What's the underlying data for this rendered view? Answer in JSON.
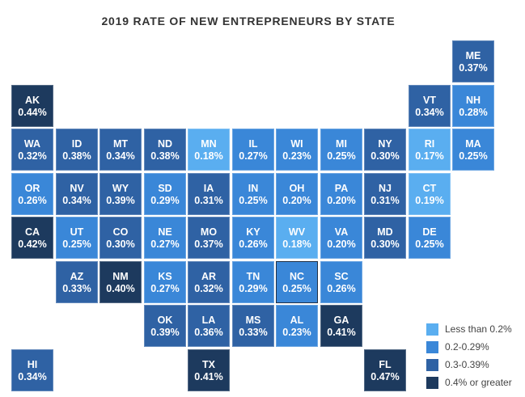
{
  "title": "2019 RATE OF NEW ENTREPRENEURS BY STATE",
  "colors": {
    "low": "#5aaef0",
    "mid_low": "#3a87d8",
    "mid_high": "#2f62a4",
    "high": "#1d3a5e"
  },
  "legend": [
    {
      "label": "Less than 0.2%",
      "color_key": "low"
    },
    {
      "label": "0.2-0.29%",
      "color_key": "mid_low"
    },
    {
      "label": "0.3-0.39%",
      "color_key": "mid_high"
    },
    {
      "label": "0.4% or greater",
      "color_key": "high"
    }
  ],
  "states": [
    {
      "abbr": "ME",
      "value": "0.37%",
      "rate": 0.37,
      "col": 10,
      "row": 0
    },
    {
      "abbr": "AK",
      "value": "0.44%",
      "rate": 0.44,
      "col": 0,
      "row": 1
    },
    {
      "abbr": "VT",
      "value": "0.34%",
      "rate": 0.34,
      "col": 9,
      "row": 1
    },
    {
      "abbr": "NH",
      "value": "0.28%",
      "rate": 0.28,
      "col": 10,
      "row": 1
    },
    {
      "abbr": "WA",
      "value": "0.32%",
      "rate": 0.32,
      "col": 0,
      "row": 2
    },
    {
      "abbr": "ID",
      "value": "0.38%",
      "rate": 0.38,
      "col": 1,
      "row": 2
    },
    {
      "abbr": "MT",
      "value": "0.34%",
      "rate": 0.34,
      "col": 2,
      "row": 2
    },
    {
      "abbr": "ND",
      "value": "0.38%",
      "rate": 0.38,
      "col": 3,
      "row": 2
    },
    {
      "abbr": "MN",
      "value": "0.18%",
      "rate": 0.18,
      "col": 4,
      "row": 2
    },
    {
      "abbr": "IL",
      "value": "0.27%",
      "rate": 0.27,
      "col": 5,
      "row": 2
    },
    {
      "abbr": "WI",
      "value": "0.23%",
      "rate": 0.23,
      "col": 6,
      "row": 2
    },
    {
      "abbr": "MI",
      "value": "0.25%",
      "rate": 0.25,
      "col": 7,
      "row": 2
    },
    {
      "abbr": "NY",
      "value": "0.30%",
      "rate": 0.3,
      "col": 8,
      "row": 2
    },
    {
      "abbr": "RI",
      "value": "0.17%",
      "rate": 0.17,
      "col": 9,
      "row": 2
    },
    {
      "abbr": "MA",
      "value": "0.25%",
      "rate": 0.25,
      "col": 10,
      "row": 2
    },
    {
      "abbr": "OR",
      "value": "0.26%",
      "rate": 0.26,
      "col": 0,
      "row": 3
    },
    {
      "abbr": "NV",
      "value": "0.34%",
      "rate": 0.34,
      "col": 1,
      "row": 3
    },
    {
      "abbr": "WY",
      "value": "0.39%",
      "rate": 0.39,
      "col": 2,
      "row": 3
    },
    {
      "abbr": "SD",
      "value": "0.29%",
      "rate": 0.29,
      "col": 3,
      "row": 3
    },
    {
      "abbr": "IA",
      "value": "0.31%",
      "rate": 0.31,
      "col": 4,
      "row": 3
    },
    {
      "abbr": "IN",
      "value": "0.25%",
      "rate": 0.25,
      "col": 5,
      "row": 3
    },
    {
      "abbr": "OH",
      "value": "0.20%",
      "rate": 0.2,
      "col": 6,
      "row": 3
    },
    {
      "abbr": "PA",
      "value": "0.20%",
      "rate": 0.2,
      "col": 7,
      "row": 3
    },
    {
      "abbr": "NJ",
      "value": "0.31%",
      "rate": 0.31,
      "col": 8,
      "row": 3
    },
    {
      "abbr": "CT",
      "value": "0.19%",
      "rate": 0.19,
      "col": 9,
      "row": 3
    },
    {
      "abbr": "CA",
      "value": "0.42%",
      "rate": 0.42,
      "col": 0,
      "row": 4
    },
    {
      "abbr": "UT",
      "value": "0.25%",
      "rate": 0.25,
      "col": 1,
      "row": 4
    },
    {
      "abbr": "CO",
      "value": "0.30%",
      "rate": 0.3,
      "col": 2,
      "row": 4
    },
    {
      "abbr": "NE",
      "value": "0.27%",
      "rate": 0.27,
      "col": 3,
      "row": 4
    },
    {
      "abbr": "MO",
      "value": "0.37%",
      "rate": 0.37,
      "col": 4,
      "row": 4
    },
    {
      "abbr": "KY",
      "value": "0.26%",
      "rate": 0.26,
      "col": 5,
      "row": 4
    },
    {
      "abbr": "WV",
      "value": "0.18%",
      "rate": 0.18,
      "col": 6,
      "row": 4
    },
    {
      "abbr": "VA",
      "value": "0.20%",
      "rate": 0.2,
      "col": 7,
      "row": 4
    },
    {
      "abbr": "MD",
      "value": "0.30%",
      "rate": 0.3,
      "col": 8,
      "row": 4
    },
    {
      "abbr": "DE",
      "value": "0.25%",
      "rate": 0.25,
      "col": 9,
      "row": 4
    },
    {
      "abbr": "AZ",
      "value": "0.33%",
      "rate": 0.33,
      "col": 1,
      "row": 5
    },
    {
      "abbr": "NM",
      "value": "0.40%",
      "rate": 0.4,
      "col": 2,
      "row": 5
    },
    {
      "abbr": "KS",
      "value": "0.27%",
      "rate": 0.27,
      "col": 3,
      "row": 5
    },
    {
      "abbr": "AR",
      "value": "0.32%",
      "rate": 0.32,
      "col": 4,
      "row": 5
    },
    {
      "abbr": "TN",
      "value": "0.29%",
      "rate": 0.29,
      "col": 5,
      "row": 5
    },
    {
      "abbr": "NC",
      "value": "0.25%",
      "rate": 0.25,
      "col": 6,
      "row": 5,
      "selected": true
    },
    {
      "abbr": "SC",
      "value": "0.26%",
      "rate": 0.26,
      "col": 7,
      "row": 5
    },
    {
      "abbr": "OK",
      "value": "0.39%",
      "rate": 0.39,
      "col": 3,
      "row": 6
    },
    {
      "abbr": "LA",
      "value": "0.36%",
      "rate": 0.36,
      "col": 4,
      "row": 6
    },
    {
      "abbr": "MS",
      "value": "0.33%",
      "rate": 0.33,
      "col": 5,
      "row": 6
    },
    {
      "abbr": "AL",
      "value": "0.23%",
      "rate": 0.23,
      "col": 6,
      "row": 6
    },
    {
      "abbr": "GA",
      "value": "0.41%",
      "rate": 0.41,
      "col": 7,
      "row": 6
    },
    {
      "abbr": "HI",
      "value": "0.34%",
      "rate": 0.34,
      "col": 0,
      "row": 7
    },
    {
      "abbr": "TX",
      "value": "0.41%",
      "rate": 0.41,
      "col": 4,
      "row": 7
    },
    {
      "abbr": "FL",
      "value": "0.47%",
      "rate": 0.47,
      "col": 8,
      "row": 7
    }
  ]
}
